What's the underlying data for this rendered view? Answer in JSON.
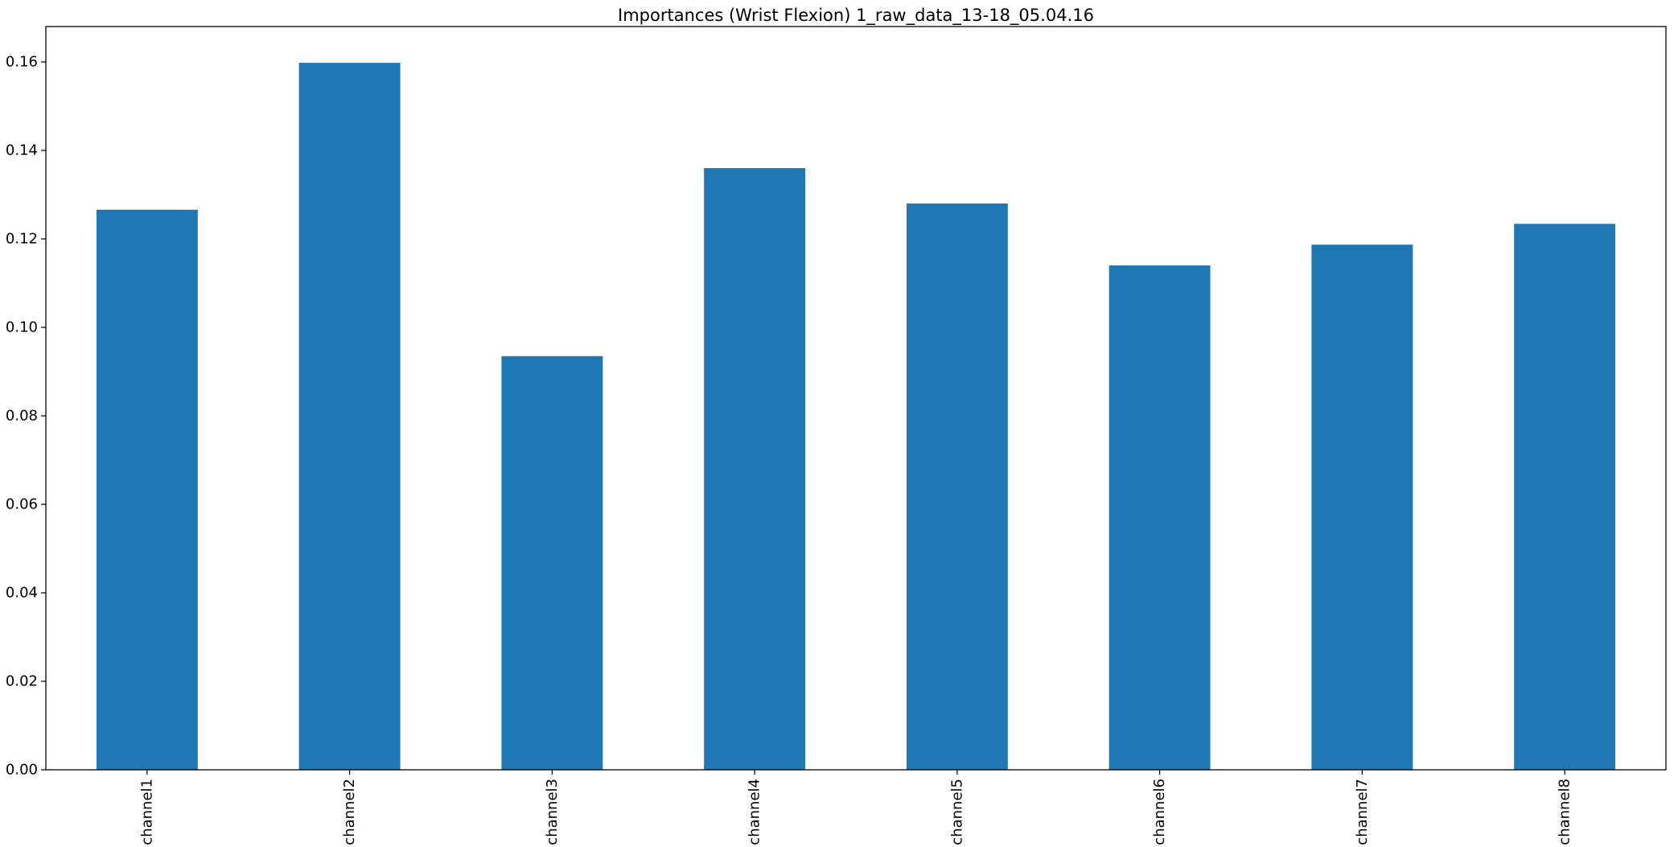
{
  "chart_data": {
    "type": "bar",
    "title": "Importances (Wrist Flexion) 1_raw_data_13-18_05.04.16",
    "xlabel": "",
    "ylabel": "",
    "categories": [
      "channel1",
      "channel2",
      "channel3",
      "channel4",
      "channel5",
      "channel6",
      "channel7",
      "channel8"
    ],
    "values": [
      0.1266,
      0.1598,
      0.0935,
      0.136,
      0.128,
      0.114,
      0.1187,
      0.1234
    ],
    "ylim": [
      0,
      0.168
    ],
    "yticks": [
      0.0,
      0.02,
      0.04,
      0.06,
      0.08,
      0.1,
      0.12,
      0.14,
      0.16
    ],
    "ytick_labels": [
      "0.00",
      "0.02",
      "0.04",
      "0.06",
      "0.08",
      "0.10",
      "0.12",
      "0.14",
      "0.16"
    ],
    "grid": false,
    "legend": "none",
    "bar_color": "#1f77b4"
  }
}
